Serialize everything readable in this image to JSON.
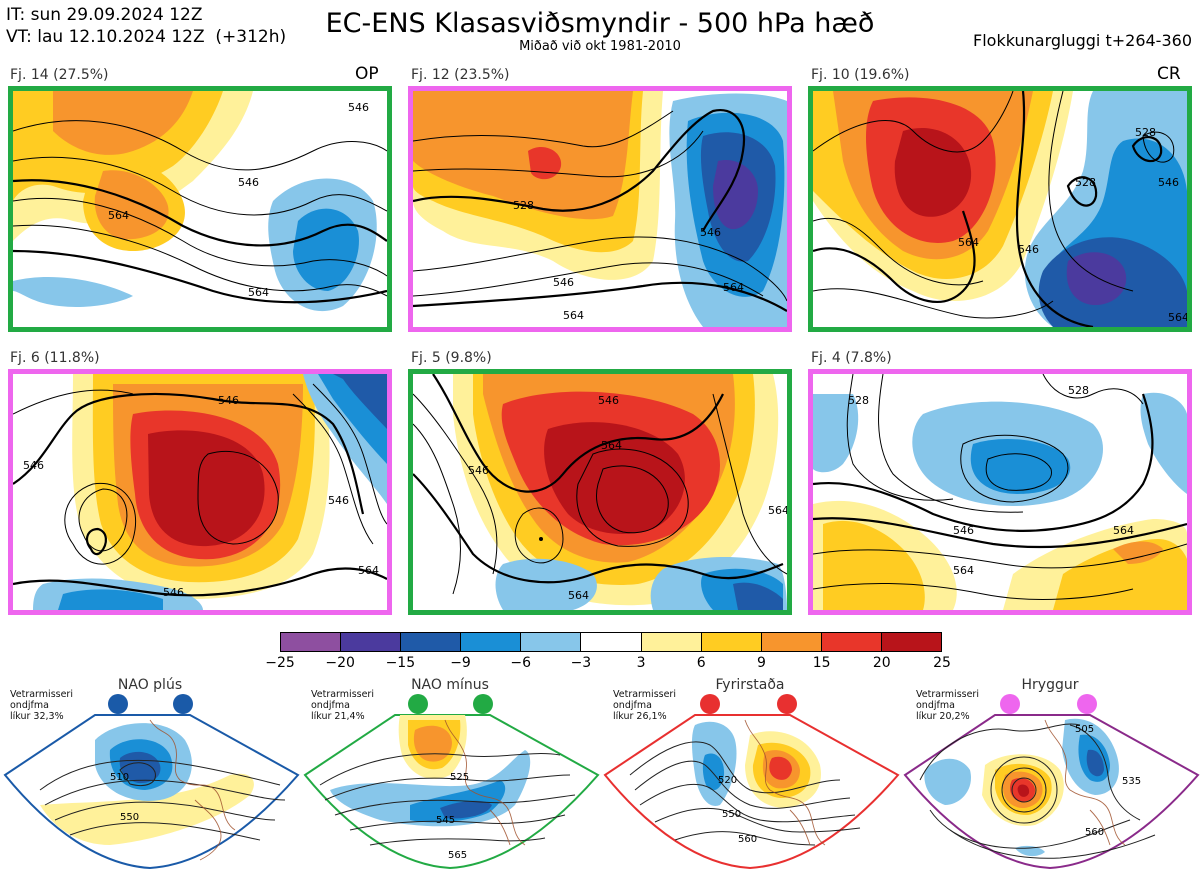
{
  "header": {
    "init_line": "IT: sun 29.09.2024 12Z",
    "valid_line": "VT: lau 12.10.2024 12Z  (+312h)",
    "title": "EC-ENS Klasasviðsmyndir - 500 hPa hæð",
    "subtitle": "Miðað við okt 1981-2010",
    "window": "Flokkunargluggi t+264-360"
  },
  "panels": [
    {
      "label": "Fj. 14 (27.5%)",
      "tag": "OP",
      "regime": "NAO mínus",
      "border_color": "#22aa44",
      "contours": [
        "546",
        "564",
        "546",
        "564"
      ]
    },
    {
      "label": "Fj. 12 (23.5%)",
      "tag": "",
      "regime": "Hryggur",
      "border_color": "#ee66ee",
      "contours": [
        "528",
        "546",
        "546",
        "564",
        "564"
      ]
    },
    {
      "label": "Fj. 10 (19.6%)",
      "tag": "CR",
      "regime": "NAO mínus",
      "border_color": "#22aa44",
      "contours": [
        "528",
        "528",
        "564",
        "546",
        "546",
        "564"
      ]
    },
    {
      "label": "Fj. 6 (11.8%)",
      "tag": "",
      "regime": "Hryggur",
      "border_color": "#ee66ee",
      "contours": [
        "546",
        "546",
        "546",
        "564",
        "546"
      ]
    },
    {
      "label": "Fj. 5 (9.8%)",
      "tag": "",
      "regime": "NAO mínus",
      "border_color": "#22aa44",
      "contours": [
        "546",
        "564",
        "546",
        "564",
        "564"
      ]
    },
    {
      "label": "Fj. 4 (7.8%)",
      "tag": "",
      "regime": "Hryggur",
      "border_color": "#ee66ee",
      "contours": [
        "528",
        "528",
        "546",
        "564",
        "564"
      ]
    }
  ],
  "colorbar": {
    "ticks": [
      "−25",
      "−20",
      "−15",
      "−9",
      "−6",
      "−3",
      "3",
      "6",
      "9",
      "15",
      "20",
      "25"
    ],
    "colors": [
      "#8e4fa0",
      "#4b3a9e",
      "#1f5aa8",
      "#1a8fd6",
      "#87c6ea",
      "#ffffff",
      "#fff19a",
      "#ffcc22",
      "#f7952d",
      "#e8362a",
      "#b8141a"
    ]
  },
  "regimes": [
    {
      "name": "NAO plús",
      "color": "#1a5aa8",
      "dot_color": "#1a5aa8",
      "prob": [
        "Vetrarmisseri",
        "ondjfma",
        "líkur 32,3%"
      ],
      "contours": [
        "510",
        "550"
      ]
    },
    {
      "name": "NAO mínus",
      "color": "#22aa44",
      "dot_color": "#22aa44",
      "prob": [
        "Vetrarmisseri",
        "ondjfma",
        "líkur 21,4%"
      ],
      "contours": [
        "525",
        "545",
        "565"
      ]
    },
    {
      "name": "Fyrirstaða",
      "color": "#e83030",
      "dot_color": "#e83030",
      "prob": [
        "Vetrarmisseri",
        "ondjfma",
        "líkur 26,1%"
      ],
      "contours": [
        "520",
        "550",
        "560"
      ]
    },
    {
      "name": "Hryggur",
      "color": "#8a2a8a",
      "dot_color": "#ee66ee",
      "prob": [
        "Vetrarmisseri",
        "ondjfma",
        "líkur 20,2%"
      ],
      "contours": [
        "505",
        "535",
        "560"
      ]
    }
  ]
}
